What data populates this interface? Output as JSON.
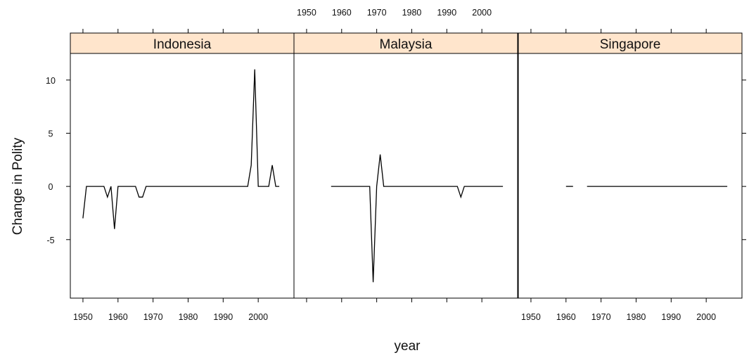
{
  "chart_data": {
    "type": "line",
    "xlabel": "year",
    "ylabel": "Change in Polity",
    "xlim": [
      1946.4,
      2010.2
    ],
    "ylim": [
      -10.5,
      12.5
    ],
    "x_ticks": [
      1950,
      1960,
      1970,
      1980,
      1990,
      2000
    ],
    "y_ticks": [
      -5,
      0,
      5,
      10
    ],
    "strip_color": "#ffe5cc",
    "line_color": "#000000",
    "panels": [
      {
        "name": "Indonesia",
        "x_tick_labels_position": "bottom",
        "segments": [
          {
            "x": [
              1950,
              1951,
              1952,
              1953,
              1954,
              1955,
              1956,
              1957,
              1958,
              1959,
              1960,
              1961,
              1962,
              1963,
              1964,
              1965,
              1966,
              1967,
              1968,
              1969,
              1970,
              1975,
              1980,
              1985,
              1990,
              1995,
              1997,
              1998,
              1999,
              2000,
              2001,
              2002,
              2003,
              2004,
              2005,
              2006
            ],
            "y": [
              -3,
              0,
              0,
              0,
              0,
              0,
              0,
              -1,
              0,
              -4,
              0,
              0,
              0,
              0,
              0,
              0,
              -1,
              -1,
              0,
              0,
              0,
              0,
              0,
              0,
              0,
              0,
              0,
              2,
              11,
              0,
              0,
              0,
              0,
              2,
              0,
              0
            ]
          }
        ]
      },
      {
        "name": "Malaysia",
        "x_tick_labels_position": "top",
        "segments": [
          {
            "x": [
              1957,
              1960,
              1965,
              1968,
              1969,
              1970,
              1971,
              1972,
              1975,
              1980,
              1985,
              1990,
              1993,
              1994,
              1995,
              1996,
              2000,
              2005,
              2006
            ],
            "y": [
              0,
              0,
              0,
              0,
              -9,
              0,
              3,
              0,
              0,
              0,
              0,
              0,
              0,
              -1,
              0,
              0,
              0,
              0,
              0
            ]
          }
        ]
      },
      {
        "name": "Singapore",
        "x_tick_labels_position": "bottom",
        "segments": [
          {
            "x": [
              1960,
              1962
            ],
            "y": [
              0,
              0
            ]
          },
          {
            "x": [
              1966,
              1970,
              1980,
              1990,
              2000,
              2006
            ],
            "y": [
              0,
              0,
              0,
              0,
              0,
              0
            ]
          }
        ]
      }
    ]
  }
}
